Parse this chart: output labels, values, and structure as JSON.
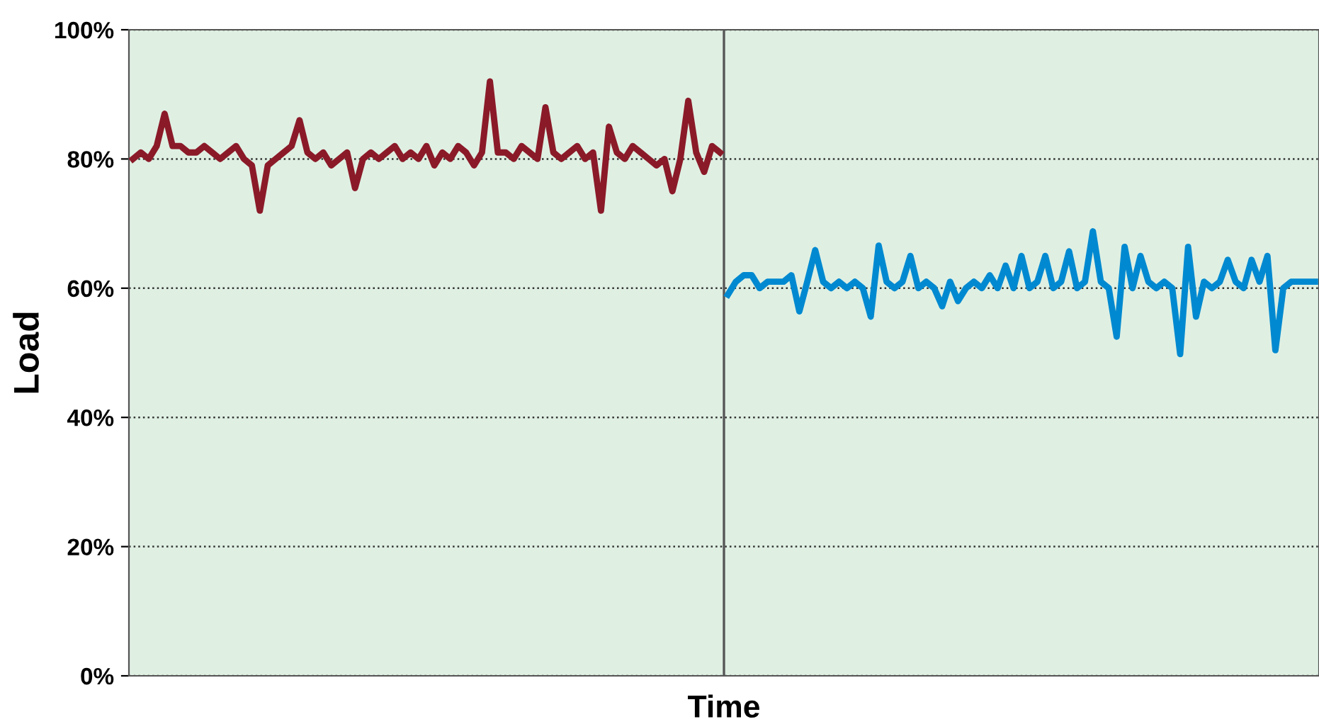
{
  "chart_data": {
    "type": "line",
    "xlabel": "Time",
    "ylabel": "Load",
    "ylim": [
      0,
      100
    ],
    "yticks": [
      {
        "value": 0,
        "label": "0%"
      },
      {
        "value": 20,
        "label": "20%"
      },
      {
        "value": 40,
        "label": "40%"
      },
      {
        "value": 60,
        "label": "60%"
      },
      {
        "value": 80,
        "label": "80%"
      },
      {
        "value": 100,
        "label": "100%"
      }
    ],
    "categories": [
      null,
      null,
      null,
      null,
      null,
      null,
      null,
      null,
      null,
      null,
      null,
      null,
      null,
      null,
      null,
      null,
      null,
      null,
      null,
      null,
      null,
      null,
      null,
      null,
      null,
      null,
      null,
      null,
      null,
      null,
      null,
      null,
      null,
      null,
      null,
      null,
      null,
      null,
      null,
      null,
      null,
      null,
      null,
      null,
      null,
      null,
      null,
      null,
      null,
      null,
      null,
      null,
      null,
      null,
      null,
      null,
      null,
      null,
      null,
      null,
      null,
      null,
      null,
      null,
      null,
      null,
      null,
      null,
      null,
      null,
      null,
      null,
      null,
      null,
      null,
      null,
      null,
      null,
      null,
      null,
      null,
      null,
      null,
      null,
      null,
      null,
      null,
      null,
      null,
      null,
      null,
      null,
      null,
      null,
      null,
      null,
      null,
      null,
      null,
      null,
      null,
      null,
      null,
      null,
      null,
      null,
      null,
      null,
      null,
      null,
      null,
      null,
      null,
      null,
      null,
      null,
      null,
      null,
      null,
      null,
      null,
      null,
      null,
      null,
      null,
      null,
      null,
      null,
      null,
      null,
      null,
      null,
      null,
      null,
      null,
      null,
      null,
      null,
      null,
      null,
      null,
      null,
      null,
      null,
      null,
      null,
      null,
      null,
      null,
      null
    ],
    "tick_labels": "y",
    "grid": "y",
    "legend": false,
    "marker": "none",
    "line_style": "solid",
    "ref_lines": [
      {
        "axis": "x",
        "color": "#555555"
      }
    ],
    "series": [
      {
        "color": "#8b1a28",
        "values": [
          80,
          81,
          80,
          82,
          87,
          82,
          82,
          81,
          81,
          82,
          81,
          80,
          81,
          82,
          80,
          79,
          72,
          79,
          80,
          81,
          82,
          86,
          81,
          80,
          81,
          79,
          80,
          81,
          75.5,
          80,
          81,
          80,
          81,
          82,
          80,
          81,
          80,
          82,
          79,
          81,
          80,
          82,
          81,
          79,
          81,
          92,
          81,
          81,
          80,
          82,
          81,
          80,
          88,
          81,
          80,
          81,
          82,
          80,
          81,
          72,
          85,
          81,
          80,
          82,
          81,
          80,
          79,
          80,
          75,
          80,
          89,
          81,
          78,
          82,
          81,
          null,
          null,
          null,
          null,
          null,
          null,
          null,
          null,
          null,
          null,
          null,
          null,
          null,
          null,
          null,
          null,
          null,
          null,
          null,
          null,
          null,
          null,
          null,
          null,
          null,
          null,
          null,
          null,
          null,
          null,
          null,
          null,
          null,
          null,
          null,
          null,
          null,
          null,
          null,
          null,
          null,
          null,
          null,
          null,
          null,
          null,
          null,
          null,
          null,
          null,
          null,
          null,
          null,
          null,
          null,
          null,
          null,
          null,
          null,
          null,
          null,
          null,
          null,
          null,
          null,
          null,
          null,
          null,
          null,
          null,
          null,
          null,
          null,
          null,
          null
        ]
      },
      {
        "color": "#0089d0",
        "values": [
          null,
          null,
          null,
          null,
          null,
          null,
          null,
          null,
          null,
          null,
          null,
          null,
          null,
          null,
          null,
          null,
          null,
          null,
          null,
          null,
          null,
          null,
          null,
          null,
          null,
          null,
          null,
          null,
          null,
          null,
          null,
          null,
          null,
          null,
          null,
          null,
          null,
          null,
          null,
          null,
          null,
          null,
          null,
          null,
          null,
          null,
          null,
          null,
          null,
          null,
          null,
          null,
          null,
          null,
          null,
          null,
          null,
          null,
          null,
          null,
          null,
          null,
          null,
          null,
          null,
          null,
          null,
          null,
          null,
          null,
          null,
          null,
          null,
          null,
          null,
          59,
          61,
          62,
          62,
          60,
          61,
          61,
          61,
          62,
          56.4,
          61,
          65.9,
          61,
          60,
          61,
          60,
          61,
          60,
          55.6,
          66.6,
          61,
          60,
          61,
          65,
          60,
          61,
          60,
          57.2,
          61,
          58,
          60,
          61,
          60,
          62,
          60,
          63.5,
          60,
          65,
          60,
          61,
          65,
          60,
          61,
          65.7,
          60,
          61,
          68.8,
          61,
          60,
          52.5,
          66.4,
          60,
          65,
          61,
          60,
          61,
          60,
          49.8,
          66.4,
          55.6,
          61,
          60,
          61,
          64.4,
          61,
          60,
          64.4,
          61,
          65,
          50.4,
          60,
          61,
          61,
          61,
          61
        ]
      }
    ]
  }
}
